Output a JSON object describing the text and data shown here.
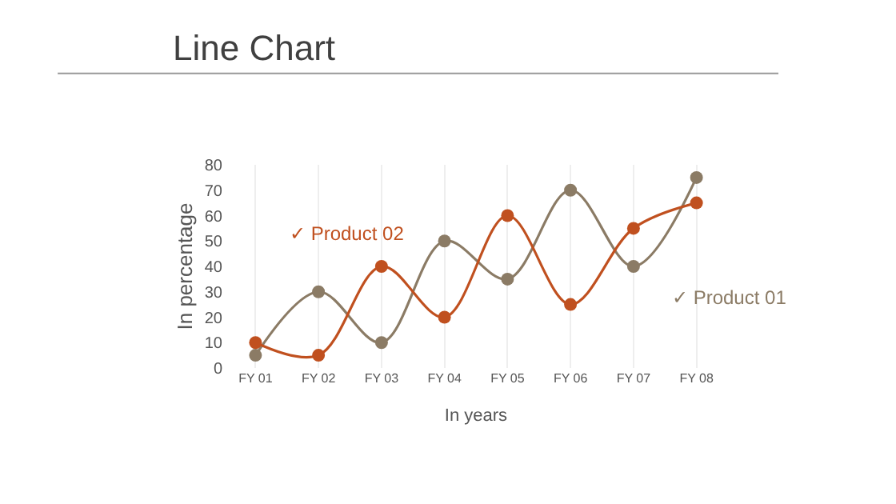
{
  "chart_data": {
    "type": "line",
    "title": "Line Chart",
    "xlabel": "In years",
    "ylabel": "In percentage",
    "categories": [
      "FY 01",
      "FY 02",
      "FY 03",
      "FY 04",
      "FY 05",
      "FY 06",
      "FY 07",
      "FY 08"
    ],
    "series": [
      {
        "name": "✓ Product 01",
        "color": "#8b7b65",
        "values": [
          5,
          30,
          10,
          50,
          35,
          70,
          40,
          75
        ]
      },
      {
        "name": "✓ Product 02",
        "color": "#c0501f",
        "values": [
          10,
          5,
          40,
          20,
          60,
          25,
          55,
          65
        ]
      }
    ],
    "ylim": [
      0,
      80
    ],
    "yticks": [
      0,
      10,
      20,
      30,
      40,
      50,
      60,
      70,
      80
    ],
    "grid": "x",
    "legend": false,
    "marker": "circle",
    "line_style": "solid"
  }
}
